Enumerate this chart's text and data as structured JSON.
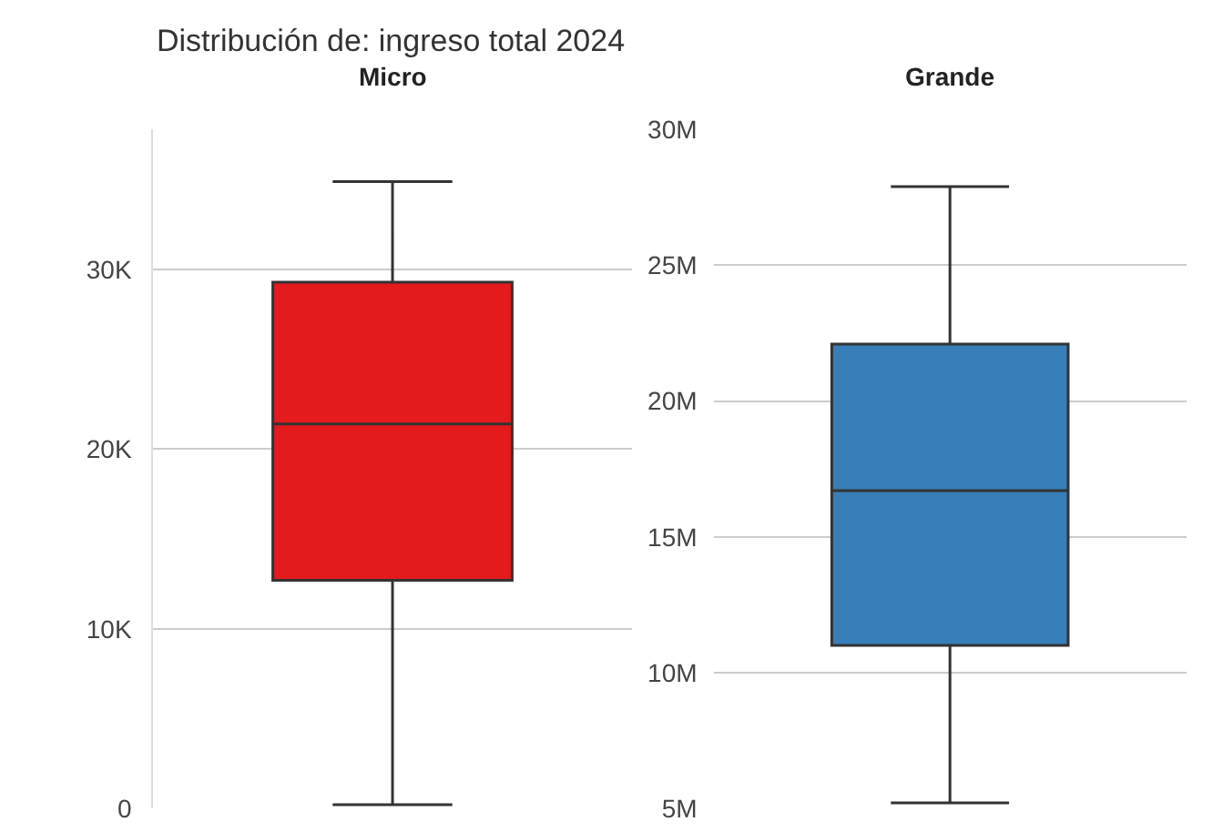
{
  "chart_data": [
    {
      "type": "box",
      "title": "Micro",
      "annotations": [
        "Distribución de: ingreso total 2024"
      ],
      "categories": [
        null
      ],
      "color": "#e41a1c",
      "tick_labels": "y",
      "grid": "y",
      "boxes": [
        {
          "low": 200,
          "q1": 12700,
          "median": 21400,
          "q3": 29300,
          "high": 34900
        }
      ],
      "ylim": [
        0,
        37800
      ],
      "yticks": [
        {
          "value": 0,
          "label": "0"
        },
        {
          "value": 10000,
          "label": "10K"
        },
        {
          "value": 20000,
          "label": "20K"
        },
        {
          "value": 30000,
          "label": "30K"
        }
      ]
    },
    {
      "type": "box",
      "title": "Grande",
      "categories": [
        null
      ],
      "color": "#377eb8",
      "tick_labels": "y",
      "grid": "y",
      "boxes": [
        {
          "low": 5200000,
          "q1": 11000000,
          "median": 16700000,
          "q3": 22100000,
          "high": 27900000
        }
      ],
      "ylim": [
        5000000,
        30000000
      ],
      "yticks": [
        {
          "value": 5000000,
          "label": "5M"
        },
        {
          "value": 10000000,
          "label": "10M"
        },
        {
          "value": 15000000,
          "label": "15M"
        },
        {
          "value": 20000000,
          "label": "20M"
        },
        {
          "value": 25000000,
          "label": "25M"
        },
        {
          "value": 30000000,
          "label": "30M"
        }
      ]
    }
  ]
}
